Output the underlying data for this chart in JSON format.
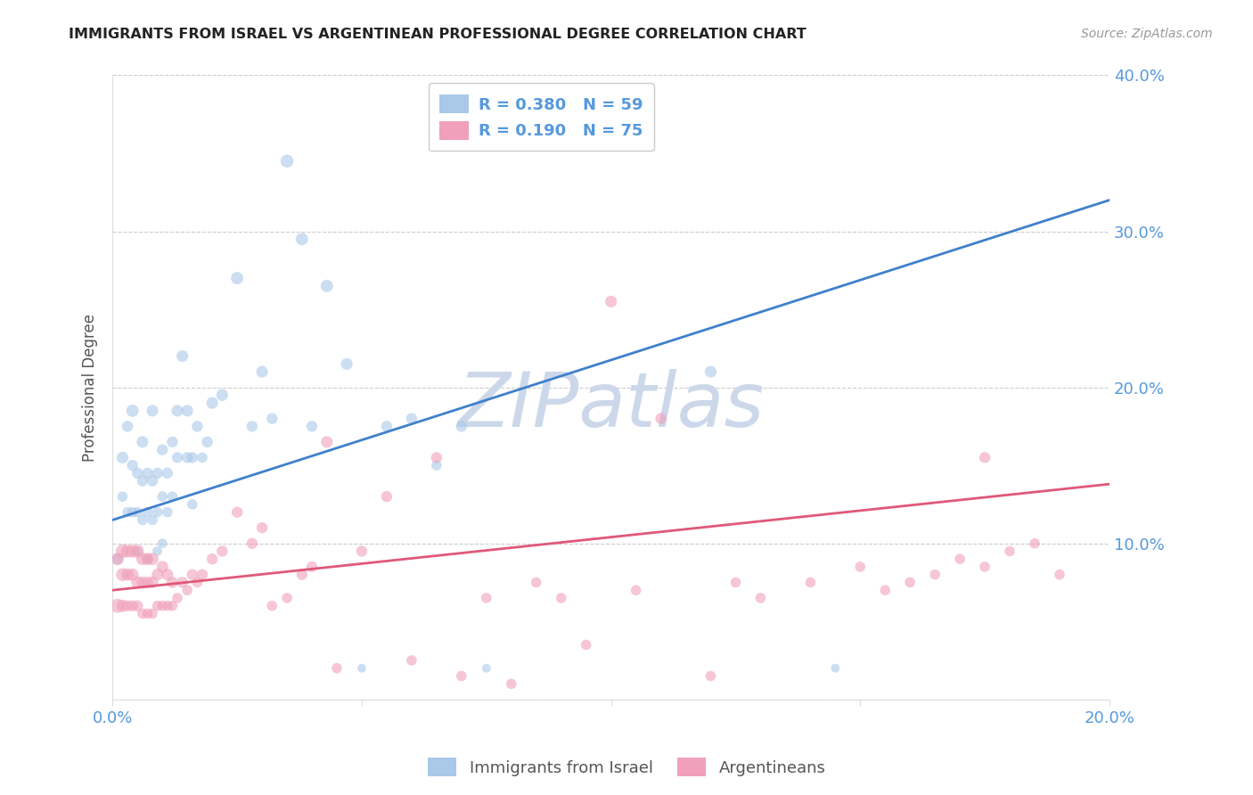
{
  "title": "IMMIGRANTS FROM ISRAEL VS ARGENTINEAN PROFESSIONAL DEGREE CORRELATION CHART",
  "source": "Source: ZipAtlas.com",
  "ylabel": "Professional Degree",
  "xlim": [
    0.0,
    0.2
  ],
  "ylim": [
    0.0,
    0.4
  ],
  "R_israel": 0.38,
  "N_israel": 59,
  "R_arg": 0.19,
  "N_arg": 75,
  "scatter_blue": "#aac8e8",
  "scatter_pink": "#f0a0ba",
  "trendline_blue": "#4080cc",
  "trendline_pink": "#e05878",
  "axis_label_color": "#5599dd",
  "title_color": "#222222",
  "watermark_color": "#ccd8ea",
  "grid_color": "#cccccc",
  "blue_trendline_y0": 0.115,
  "blue_trendline_y1": 0.32,
  "pink_trendline_y0": 0.07,
  "pink_trendline_y1": 0.138,
  "israel_scatter_x": [
    0.001,
    0.002,
    0.002,
    0.003,
    0.003,
    0.004,
    0.004,
    0.004,
    0.005,
    0.005,
    0.005,
    0.006,
    0.006,
    0.006,
    0.007,
    0.007,
    0.007,
    0.008,
    0.008,
    0.008,
    0.009,
    0.009,
    0.009,
    0.01,
    0.01,
    0.01,
    0.011,
    0.011,
    0.012,
    0.012,
    0.013,
    0.013,
    0.014,
    0.015,
    0.015,
    0.016,
    0.016,
    0.017,
    0.018,
    0.019,
    0.02,
    0.022,
    0.025,
    0.028,
    0.03,
    0.032,
    0.035,
    0.038,
    0.04,
    0.043,
    0.047,
    0.05,
    0.055,
    0.06,
    0.065,
    0.07,
    0.075,
    0.12,
    0.145
  ],
  "israel_scatter_y": [
    0.09,
    0.13,
    0.155,
    0.12,
    0.175,
    0.12,
    0.15,
    0.185,
    0.095,
    0.12,
    0.145,
    0.115,
    0.14,
    0.165,
    0.12,
    0.145,
    0.09,
    0.115,
    0.14,
    0.185,
    0.095,
    0.12,
    0.145,
    0.1,
    0.13,
    0.16,
    0.12,
    0.145,
    0.13,
    0.165,
    0.155,
    0.185,
    0.22,
    0.155,
    0.185,
    0.125,
    0.155,
    0.175,
    0.155,
    0.165,
    0.19,
    0.195,
    0.27,
    0.175,
    0.21,
    0.18,
    0.345,
    0.295,
    0.175,
    0.265,
    0.215,
    0.02,
    0.175,
    0.18,
    0.15,
    0.175,
    0.02,
    0.21,
    0.02
  ],
  "israel_scatter_size": [
    80,
    70,
    90,
    70,
    80,
    70,
    80,
    100,
    60,
    70,
    80,
    70,
    80,
    90,
    70,
    80,
    60,
    70,
    80,
    90,
    60,
    70,
    80,
    60,
    70,
    80,
    70,
    80,
    70,
    80,
    80,
    90,
    90,
    80,
    90,
    70,
    80,
    80,
    70,
    80,
    90,
    90,
    100,
    80,
    90,
    80,
    110,
    100,
    80,
    100,
    90,
    50,
    80,
    80,
    70,
    80,
    50,
    90,
    50
  ],
  "arg_scatter_x": [
    0.001,
    0.001,
    0.002,
    0.002,
    0.002,
    0.003,
    0.003,
    0.003,
    0.004,
    0.004,
    0.004,
    0.005,
    0.005,
    0.005,
    0.006,
    0.006,
    0.006,
    0.007,
    0.007,
    0.007,
    0.008,
    0.008,
    0.008,
    0.009,
    0.009,
    0.01,
    0.01,
    0.011,
    0.011,
    0.012,
    0.012,
    0.013,
    0.014,
    0.015,
    0.016,
    0.017,
    0.018,
    0.02,
    0.022,
    0.025,
    0.028,
    0.03,
    0.032,
    0.035,
    0.038,
    0.04,
    0.043,
    0.045,
    0.05,
    0.055,
    0.06,
    0.065,
    0.07,
    0.075,
    0.08,
    0.085,
    0.09,
    0.095,
    0.1,
    0.105,
    0.11,
    0.12,
    0.125,
    0.13,
    0.14,
    0.15,
    0.155,
    0.16,
    0.165,
    0.17,
    0.175,
    0.18,
    0.185,
    0.175,
    0.19
  ],
  "arg_scatter_y": [
    0.06,
    0.09,
    0.06,
    0.08,
    0.095,
    0.06,
    0.08,
    0.095,
    0.06,
    0.08,
    0.095,
    0.06,
    0.075,
    0.095,
    0.055,
    0.075,
    0.09,
    0.055,
    0.075,
    0.09,
    0.055,
    0.075,
    0.09,
    0.06,
    0.08,
    0.06,
    0.085,
    0.06,
    0.08,
    0.06,
    0.075,
    0.065,
    0.075,
    0.07,
    0.08,
    0.075,
    0.08,
    0.09,
    0.095,
    0.12,
    0.1,
    0.11,
    0.06,
    0.065,
    0.08,
    0.085,
    0.165,
    0.02,
    0.095,
    0.13,
    0.025,
    0.155,
    0.015,
    0.065,
    0.01,
    0.075,
    0.065,
    0.035,
    0.255,
    0.07,
    0.18,
    0.015,
    0.075,
    0.065,
    0.075,
    0.085,
    0.07,
    0.075,
    0.08,
    0.09,
    0.085,
    0.095,
    0.1,
    0.155,
    0.08
  ],
  "arg_scatter_size": [
    130,
    100,
    100,
    110,
    120,
    80,
    100,
    110,
    80,
    100,
    110,
    80,
    100,
    110,
    70,
    90,
    100,
    70,
    90,
    100,
    70,
    90,
    100,
    70,
    90,
    70,
    90,
    70,
    90,
    70,
    85,
    70,
    80,
    70,
    80,
    70,
    80,
    80,
    80,
    80,
    80,
    80,
    70,
    70,
    80,
    80,
    90,
    70,
    80,
    80,
    70,
    80,
    70,
    70,
    70,
    70,
    70,
    70,
    90,
    70,
    80,
    70,
    70,
    70,
    70,
    70,
    70,
    70,
    70,
    70,
    70,
    70,
    70,
    80,
    70
  ]
}
